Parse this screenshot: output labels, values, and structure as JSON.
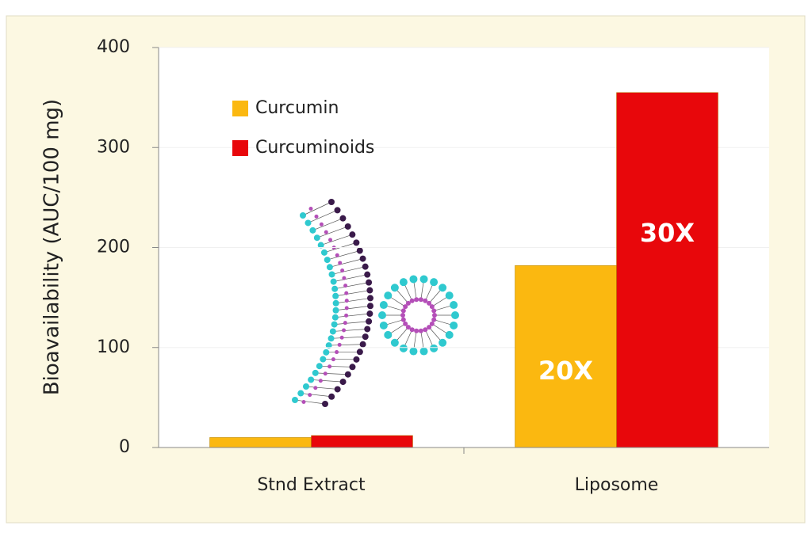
{
  "chart_data": {
    "type": "bar",
    "y_label": "Bioavailability (AUC/100 mg)",
    "categories": [
      "Stnd Extract",
      "Liposome"
    ],
    "series": [
      {
        "name": "Curcumin",
        "color": "#fbb810",
        "values": [
          10,
          182
        ]
      },
      {
        "name": "Curcuminoids",
        "color": "#e8070b",
        "values": [
          12,
          355
        ]
      }
    ],
    "annotations": [
      "20X",
      "30X"
    ],
    "ylim": [
      0,
      400
    ],
    "yticks": [
      0,
      100,
      200,
      300,
      400
    ],
    "grid": true
  }
}
